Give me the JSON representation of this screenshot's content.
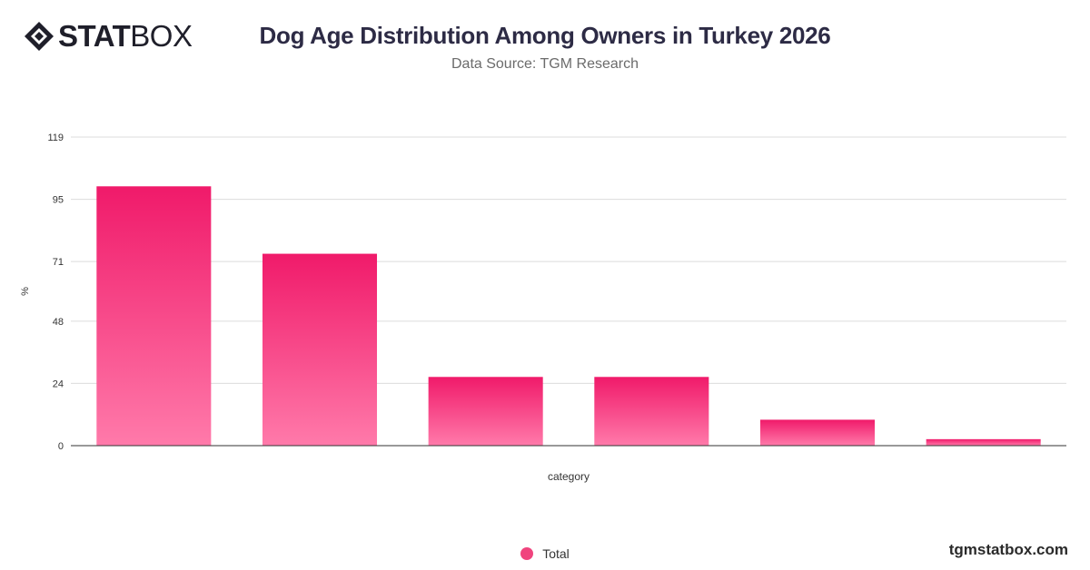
{
  "brand": {
    "name_bold": "STAT",
    "name_light": "BOX",
    "website": "tgmstatbox.com"
  },
  "chart_data": {
    "type": "bar",
    "title": "Dog Age Distribution Among Owners in Turkey 2026",
    "subtitle": "Data Source: TGM Research",
    "xlabel": "category",
    "ylabel": "%",
    "ylim": [
      0,
      119
    ],
    "yticks": [
      "0",
      "24",
      "48",
      "71",
      "95",
      "119"
    ],
    "grid": true,
    "legend_position": "bottom-center",
    "series": [
      {
        "name": "Total",
        "color": "#f0447e",
        "values": [
          100,
          74,
          26.5,
          26.5,
          10,
          2.5
        ]
      }
    ]
  }
}
